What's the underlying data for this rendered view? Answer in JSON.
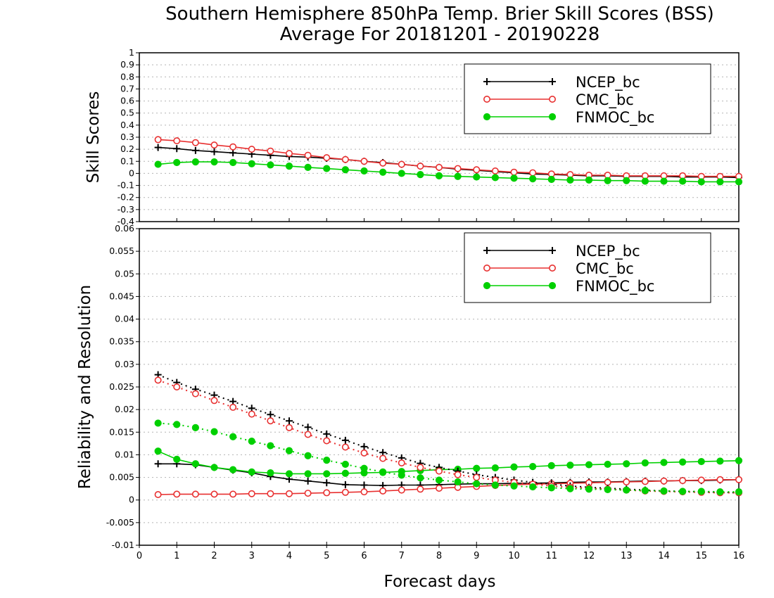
{
  "title": {
    "line1": "Southern Hemisphere 850hPa Temp. Brier Skill Scores (BSS)",
    "line2": "Average For 20181201 - 20190228"
  },
  "xlabel": "Forecast days",
  "colors": {
    "NCEP_bc": "#000000",
    "CMC_bc": "#e83030",
    "FNMOC_bc": "#00d000",
    "grid": "#b4b4b4"
  },
  "chart_data": [
    {
      "type": "line",
      "ylabel": "Skill Scores",
      "xlim": [
        0,
        16
      ],
      "ylim": [
        -0.4,
        1
      ],
      "x_ticks": [
        "0",
        "1",
        "2",
        "3",
        "4",
        "5",
        "6",
        "7",
        "8",
        "9",
        "10",
        "11",
        "12",
        "13",
        "14",
        "15",
        "16"
      ],
      "y_ticks": [
        "-0.4",
        "-0.3",
        "-0.2",
        "-0.1",
        "0",
        "0.1",
        "0.2",
        "0.3",
        "0.4",
        "0.5",
        "0.6",
        "0.7",
        "0.8",
        "0.9",
        "1"
      ],
      "grid": true,
      "legend_position": "top-right",
      "x": [
        0.5,
        1,
        1.5,
        2,
        2.5,
        3,
        3.5,
        4,
        4.5,
        5,
        5.5,
        6,
        6.5,
        7,
        7.5,
        8,
        8.5,
        9,
        9.5,
        10,
        10.5,
        11,
        11.5,
        12,
        12.5,
        13,
        13.5,
        14,
        14.5,
        15,
        15.5,
        16
      ],
      "series": [
        {
          "name": "NCEP_bc",
          "marker": "plus",
          "line": "solid",
          "values": [
            0.215,
            0.205,
            0.19,
            0.18,
            0.17,
            0.16,
            0.15,
            0.14,
            0.135,
            0.125,
            0.115,
            0.1,
            0.09,
            0.075,
            0.06,
            0.05,
            0.035,
            0.025,
            0.015,
            0.005,
            -0.005,
            -0.01,
            -0.015,
            -0.02,
            -0.02,
            -0.025,
            -0.025,
            -0.025,
            -0.03,
            -0.03,
            -0.03,
            -0.035
          ]
        },
        {
          "name": "CMC_bc",
          "marker": "circle-open",
          "line": "solid",
          "values": [
            0.28,
            0.27,
            0.255,
            0.235,
            0.22,
            0.2,
            0.185,
            0.165,
            0.15,
            0.13,
            0.115,
            0.1,
            0.085,
            0.075,
            0.06,
            0.05,
            0.04,
            0.03,
            0.02,
            0.01,
            0.005,
            -0.005,
            -0.01,
            -0.015,
            -0.015,
            -0.02,
            -0.02,
            -0.02,
            -0.02,
            -0.025,
            -0.025,
            -0.025
          ]
        },
        {
          "name": "FNMOC_bc",
          "marker": "circle-filled",
          "line": "solid",
          "values": [
            0.075,
            0.09,
            0.095,
            0.095,
            0.09,
            0.08,
            0.07,
            0.06,
            0.05,
            0.04,
            0.03,
            0.02,
            0.01,
            0.0,
            -0.01,
            -0.02,
            -0.025,
            -0.03,
            -0.035,
            -0.04,
            -0.045,
            -0.05,
            -0.055,
            -0.055,
            -0.06,
            -0.06,
            -0.065,
            -0.065,
            -0.065,
            -0.07,
            -0.07,
            -0.07
          ]
        }
      ]
    },
    {
      "type": "line",
      "ylabel": "Reliability and Resolution",
      "xlim": [
        0,
        16
      ],
      "ylim": [
        -0.01,
        0.06
      ],
      "x_ticks": [
        "0",
        "1",
        "2",
        "3",
        "4",
        "5",
        "6",
        "7",
        "8",
        "9",
        "10",
        "11",
        "12",
        "13",
        "14",
        "15",
        "16"
      ],
      "y_ticks": [
        "-0.01",
        "-0.005",
        "0",
        "0.005",
        "0.01",
        "0.015",
        "0.02",
        "0.025",
        "0.03",
        "0.035",
        "0.04",
        "0.045",
        "0.05",
        "0.055",
        "0.06"
      ],
      "grid": true,
      "legend_position": "top-right",
      "x": [
        0.5,
        1,
        1.5,
        2,
        2.5,
        3,
        3.5,
        4,
        4.5,
        5,
        5.5,
        6,
        6.5,
        7,
        7.5,
        8,
        8.5,
        9,
        9.5,
        10,
        10.5,
        11,
        11.5,
        12,
        12.5,
        13,
        13.5,
        14,
        14.5,
        15,
        15.5,
        16
      ],
      "series": [
        {
          "name": "NCEP_bc",
          "marker": "plus",
          "line": "solid",
          "values": [
            0.008,
            0.008,
            0.0078,
            0.0072,
            0.0066,
            0.006,
            0.0052,
            0.0046,
            0.0042,
            0.0038,
            0.0034,
            0.0033,
            0.0032,
            0.0033,
            0.0033,
            0.0034,
            0.0035,
            0.0036,
            0.0036,
            0.0037,
            0.0037,
            0.0038,
            0.0039,
            0.004,
            0.004,
            0.0041,
            0.0042,
            0.0042,
            0.0043,
            0.0043,
            0.0044,
            0.0045
          ]
        },
        {
          "name": "CMC_bc",
          "marker": "circle-open",
          "line": "solid",
          "values": [
            0.0012,
            0.0013,
            0.0013,
            0.0013,
            0.0013,
            0.0014,
            0.0014,
            0.0014,
            0.0015,
            0.0016,
            0.0017,
            0.0018,
            0.002,
            0.0022,
            0.0024,
            0.0026,
            0.0028,
            0.003,
            0.0032,
            0.0034,
            0.0035,
            0.0036,
            0.0037,
            0.0038,
            0.0039,
            0.004,
            0.0041,
            0.0042,
            0.0043,
            0.0044,
            0.0045,
            0.0045
          ]
        },
        {
          "name": "FNMOC_bc",
          "marker": "circle-filled",
          "line": "solid",
          "values": [
            0.0108,
            0.009,
            0.008,
            0.0072,
            0.0067,
            0.0062,
            0.006,
            0.0058,
            0.0058,
            0.0058,
            0.0059,
            0.006,
            0.0061,
            0.0063,
            0.0065,
            0.0067,
            0.0068,
            0.007,
            0.0071,
            0.0073,
            0.0074,
            0.0076,
            0.0077,
            0.0078,
            0.0079,
            0.008,
            0.0082,
            0.0083,
            0.0084,
            0.0085,
            0.0086,
            0.0087
          ]
        },
        {
          "name": "NCEP_bc",
          "marker": "plus",
          "line": "dotted",
          "values": [
            0.0277,
            0.026,
            0.0245,
            0.0232,
            0.0218,
            0.0203,
            0.0189,
            0.0175,
            0.0161,
            0.0146,
            0.0132,
            0.0118,
            0.0105,
            0.0093,
            0.0081,
            0.0072,
            0.0064,
            0.0056,
            0.005,
            0.0044,
            0.0039,
            0.0035,
            0.0031,
            0.0028,
            0.0026,
            0.0024,
            0.0022,
            0.002,
            0.0019,
            0.0018,
            0.0017,
            0.0016
          ]
        },
        {
          "name": "CMC_bc",
          "marker": "circle-open",
          "line": "dotted",
          "values": [
            0.0265,
            0.025,
            0.0235,
            0.022,
            0.0205,
            0.019,
            0.0175,
            0.016,
            0.0145,
            0.0131,
            0.0117,
            0.0104,
            0.0092,
            0.0082,
            0.0072,
            0.0064,
            0.0056,
            0.005,
            0.0044,
            0.0039,
            0.0035,
            0.0031,
            0.0028,
            0.0026,
            0.0024,
            0.0022,
            0.002,
            0.0019,
            0.0018,
            0.0017,
            0.0016,
            0.0016
          ]
        },
        {
          "name": "FNMOC_bc",
          "marker": "circle-filled",
          "line": "dotted",
          "values": [
            0.017,
            0.0167,
            0.016,
            0.0151,
            0.014,
            0.013,
            0.012,
            0.0109,
            0.0098,
            0.0088,
            0.0079,
            0.007,
            0.0062,
            0.0055,
            0.0049,
            0.0044,
            0.004,
            0.0036,
            0.0033,
            0.0031,
            0.0029,
            0.0027,
            0.0025,
            0.0024,
            0.0023,
            0.0022,
            0.0021,
            0.002,
            0.0019,
            0.0019,
            0.0018,
            0.0018
          ]
        }
      ]
    }
  ]
}
